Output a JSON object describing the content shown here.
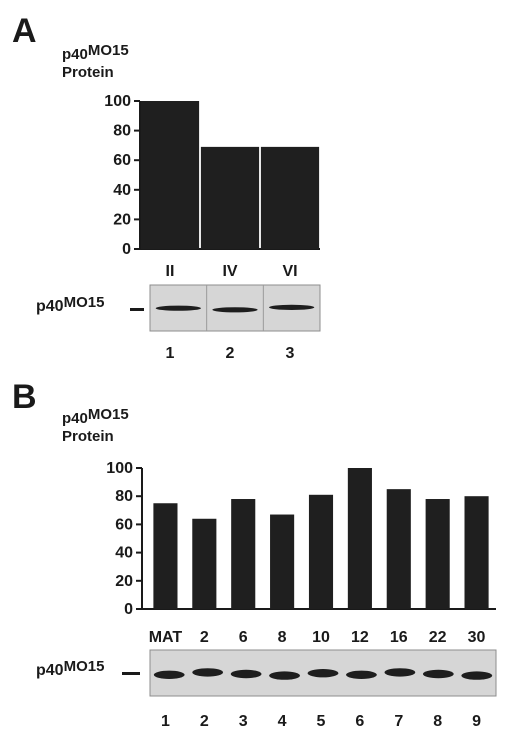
{
  "panel_a": {
    "letter": "A",
    "ylabel_main": "p40",
    "ylabel_sup": "MO15",
    "ylabel_line2": "Protein",
    "blot_label_main": "p40",
    "blot_label_sup": "MO15"
  },
  "panel_b": {
    "letter": "B",
    "ylabel_main": "p40",
    "ylabel_sup": "MO15",
    "ylabel_line2": "Protein",
    "blot_label_main": "p40",
    "blot_label_sup": "MO15"
  },
  "chart_data": [
    {
      "type": "bar",
      "categories": [
        "II",
        "IV",
        "VI"
      ],
      "values": [
        100,
        69,
        69
      ],
      "lanes": [
        "1",
        "2",
        "3"
      ],
      "ylabel": "p40MO15 Protein",
      "yticks": [
        0,
        20,
        40,
        60,
        80,
        100
      ],
      "ylim": [
        0,
        100
      ],
      "grid": false,
      "bar_color": "#1f1f1f"
    },
    {
      "type": "bar",
      "categories": [
        "MAT",
        "2",
        "6",
        "8",
        "10",
        "12",
        "16",
        "22",
        "30"
      ],
      "values": [
        75,
        64,
        78,
        67,
        81,
        100,
        85,
        78,
        80
      ],
      "lanes": [
        "1",
        "2",
        "3",
        "4",
        "5",
        "6",
        "7",
        "8",
        "9"
      ],
      "ylabel": "p40MO15 Protein",
      "yticks": [
        0,
        20,
        40,
        60,
        80,
        100
      ],
      "ylim": [
        0,
        100
      ],
      "grid": false,
      "bar_color": "#1f1f1f"
    }
  ]
}
